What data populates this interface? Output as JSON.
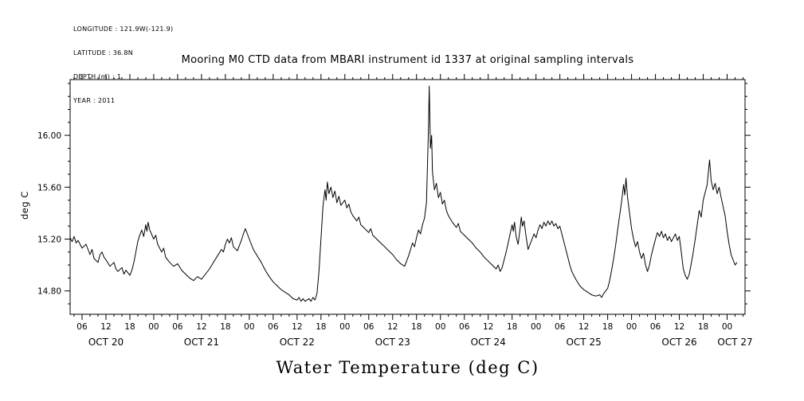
{
  "header": {
    "lines": [
      "LONGITUDE : 121.9W(-121.9)",
      "LATITUDE : 36.8N",
      "DEPTH (m) : 1",
      "YEAR : 2011"
    ]
  },
  "chart_data": {
    "type": "line",
    "title": "Mooring M0 CTD data from MBARI instrument id 1337 at original sampling intervals",
    "xlabel": "Water Temperature (deg C)",
    "ylabel": "deg C",
    "line_color": "#000000",
    "background_color": "#ffffff",
    "grid": false,
    "legend": "none",
    "xlim_hours": [
      3,
      172.5
    ],
    "ylim": [
      14.62,
      16.43
    ],
    "x_minor_step": 2,
    "y_minor_step": 0.1,
    "x_major_ticks": {
      "hours": [
        6,
        12,
        18,
        24,
        30,
        36,
        42,
        48,
        54,
        60,
        66,
        72,
        78,
        84,
        90,
        96,
        102,
        108,
        114,
        120,
        126,
        132,
        138,
        144,
        150,
        156,
        162,
        168
      ],
      "labels": [
        "06",
        "12",
        "18",
        "00",
        "06",
        "12",
        "18",
        "00",
        "06",
        "12",
        "18",
        "00",
        "06",
        "12",
        "18",
        "00",
        "06",
        "12",
        "18",
        "00",
        "06",
        "12",
        "18",
        "00",
        "06",
        "12",
        "18",
        "00"
      ]
    },
    "y_major_ticks": {
      "values": [
        14.8,
        15.2,
        15.6,
        16.0
      ],
      "labels": [
        "14.80",
        "15.20",
        "15.60",
        "16.00"
      ]
    },
    "date_labels": [
      {
        "text": "OCT 20",
        "hour": 12
      },
      {
        "text": "OCT 21",
        "hour": 36
      },
      {
        "text": "OCT 22",
        "hour": 60
      },
      {
        "text": "OCT 23",
        "hour": 84
      },
      {
        "text": "OCT 24",
        "hour": 108
      },
      {
        "text": "OCT 25",
        "hour": 132
      },
      {
        "text": "OCT 26",
        "hour": 156
      },
      {
        "text": "OCT 27",
        "hour": 170
      }
    ],
    "series": [
      {
        "name": "water_temperature_degC",
        "x_hours": [
          3,
          3.5,
          4,
          4.5,
          5,
          6,
          7,
          8,
          8.5,
          9,
          10,
          10.5,
          11,
          11.5,
          12,
          13,
          14,
          14.5,
          15,
          16,
          16.5,
          17,
          18,
          18.5,
          19,
          19.5,
          20,
          20.5,
          21,
          21.5,
          22,
          22.3,
          22.6,
          23,
          24,
          24.5,
          25,
          26,
          26.5,
          27,
          28,
          29,
          30,
          31,
          32,
          33,
          34,
          35,
          36,
          37,
          38,
          39,
          40,
          41,
          41.5,
          42,
          42.5,
          43,
          43.5,
          44,
          45,
          45.5,
          46,
          46.5,
          47,
          47.5,
          48,
          49,
          50,
          51,
          52,
          53,
          54,
          55,
          56,
          57,
          58,
          59,
          60,
          60.5,
          61,
          61.5,
          62,
          63,
          63.5,
          64,
          64.5,
          65,
          65.5,
          66,
          66.5,
          67,
          67.3,
          67.6,
          68,
          68.5,
          69,
          69.5,
          70,
          70.5,
          71,
          72,
          72.5,
          73,
          73.5,
          74,
          75,
          75.5,
          76,
          77,
          78,
          78.5,
          79,
          80,
          81,
          82,
          83,
          84,
          85,
          86,
          87,
          87.5,
          88,
          88.5,
          89,
          89.5,
          90,
          90.5,
          91,
          91.5,
          92,
          92.5,
          93,
          93.2,
          93.5,
          93.8,
          94,
          94.5,
          95,
          95.5,
          96,
          96.5,
          97,
          97.5,
          98,
          99,
          100,
          100.5,
          101,
          102,
          103,
          104,
          105,
          106,
          107,
          108,
          109,
          110,
          110.5,
          111,
          111.5,
          112,
          112.5,
          113,
          113.5,
          114,
          114.3,
          114.6,
          115,
          115.5,
          116,
          116.3,
          116.6,
          117,
          117.5,
          118,
          118.5,
          119,
          119.5,
          120,
          120.5,
          121,
          121.5,
          122,
          122.5,
          123,
          123.5,
          124,
          124.5,
          125,
          125.5,
          126,
          126.5,
          127,
          127.5,
          128,
          128.5,
          129,
          130,
          131,
          132,
          133,
          134,
          135,
          136,
          136.5,
          137,
          138,
          138.5,
          139,
          139.5,
          140,
          140.5,
          141,
          141.5,
          142,
          142.3,
          142.6,
          143,
          143.5,
          144,
          144.5,
          145,
          145.5,
          146,
          146.5,
          147,
          147.5,
          148,
          148.5,
          149,
          149.5,
          150,
          150.5,
          151,
          151.5,
          152,
          152.5,
          153,
          153.5,
          154,
          154.5,
          155,
          155.5,
          156,
          156.5,
          157,
          157.5,
          158,
          158.5,
          159,
          159.5,
          160,
          160.5,
          161,
          161.5,
          162,
          162.5,
          163,
          163.3,
          163.6,
          164,
          164.5,
          165,
          165.5,
          166,
          166.5,
          167,
          167.5,
          168,
          168.5,
          169,
          169.5,
          170,
          170.5
        ],
        "y": [
          15.21,
          15.18,
          15.22,
          15.17,
          15.19,
          15.13,
          15.16,
          15.08,
          15.12,
          15.05,
          15.02,
          15.08,
          15.1,
          15.06,
          15.04,
          14.99,
          15.02,
          14.97,
          14.95,
          14.98,
          14.93,
          14.96,
          14.92,
          14.96,
          15.02,
          15.1,
          15.18,
          15.23,
          15.27,
          15.22,
          15.31,
          15.26,
          15.33,
          15.27,
          15.2,
          15.23,
          15.16,
          15.1,
          15.13,
          15.06,
          15.02,
          14.99,
          15.01,
          14.96,
          14.93,
          14.9,
          14.88,
          14.91,
          14.89,
          14.93,
          14.97,
          15.02,
          15.07,
          15.12,
          15.1,
          15.16,
          15.2,
          15.17,
          15.21,
          15.14,
          15.11,
          15.15,
          15.19,
          15.24,
          15.28,
          15.24,
          15.2,
          15.12,
          15.07,
          15.02,
          14.96,
          14.91,
          14.87,
          14.84,
          14.81,
          14.79,
          14.77,
          14.74,
          14.73,
          14.75,
          14.72,
          14.74,
          14.72,
          14.74,
          14.72,
          14.75,
          14.73,
          14.78,
          14.95,
          15.2,
          15.45,
          15.58,
          15.5,
          15.64,
          15.55,
          15.6,
          15.52,
          15.57,
          15.48,
          15.53,
          15.46,
          15.5,
          15.44,
          15.47,
          15.41,
          15.38,
          15.34,
          15.37,
          15.31,
          15.28,
          15.25,
          15.28,
          15.23,
          15.2,
          15.17,
          15.14,
          15.11,
          15.08,
          15.04,
          15.01,
          14.99,
          15.03,
          15.07,
          15.12,
          15.17,
          15.14,
          15.21,
          15.27,
          15.24,
          15.31,
          15.36,
          15.48,
          16.05,
          16.38,
          15.9,
          16.0,
          15.72,
          15.58,
          15.63,
          15.52,
          15.56,
          15.47,
          15.5,
          15.42,
          15.38,
          15.33,
          15.29,
          15.32,
          15.26,
          15.23,
          15.2,
          15.17,
          15.13,
          15.1,
          15.06,
          15.03,
          15.0,
          14.97,
          15.0,
          14.95,
          14.98,
          15.04,
          15.1,
          15.17,
          15.24,
          15.31,
          15.26,
          15.33,
          15.22,
          15.16,
          15.28,
          15.37,
          15.3,
          15.34,
          15.22,
          15.12,
          15.16,
          15.2,
          15.24,
          15.21,
          15.27,
          15.31,
          15.28,
          15.33,
          15.3,
          15.34,
          15.31,
          15.34,
          15.3,
          15.32,
          15.28,
          15.3,
          15.24,
          15.18,
          15.12,
          15.06,
          15.0,
          14.95,
          14.89,
          14.84,
          14.81,
          14.79,
          14.77,
          14.76,
          14.77,
          14.75,
          14.78,
          14.82,
          14.88,
          14.96,
          15.05,
          15.15,
          15.27,
          15.38,
          15.49,
          15.62,
          15.54,
          15.67,
          15.52,
          15.4,
          15.28,
          15.2,
          15.14,
          15.18,
          15.1,
          15.05,
          15.09,
          15.0,
          14.95,
          15.0,
          15.08,
          15.14,
          15.2,
          15.25,
          15.22,
          15.26,
          15.21,
          15.24,
          15.19,
          15.22,
          15.18,
          15.21,
          15.24,
          15.19,
          15.22,
          15.1,
          14.97,
          14.92,
          14.89,
          14.93,
          15.01,
          15.1,
          15.2,
          15.31,
          15.42,
          15.37,
          15.5,
          15.56,
          15.62,
          15.72,
          15.81,
          15.65,
          15.58,
          15.63,
          15.55,
          15.6,
          15.52,
          15.45,
          15.38,
          15.26,
          15.16,
          15.08,
          15.04,
          15.0,
          15.02
        ]
      }
    ]
  }
}
